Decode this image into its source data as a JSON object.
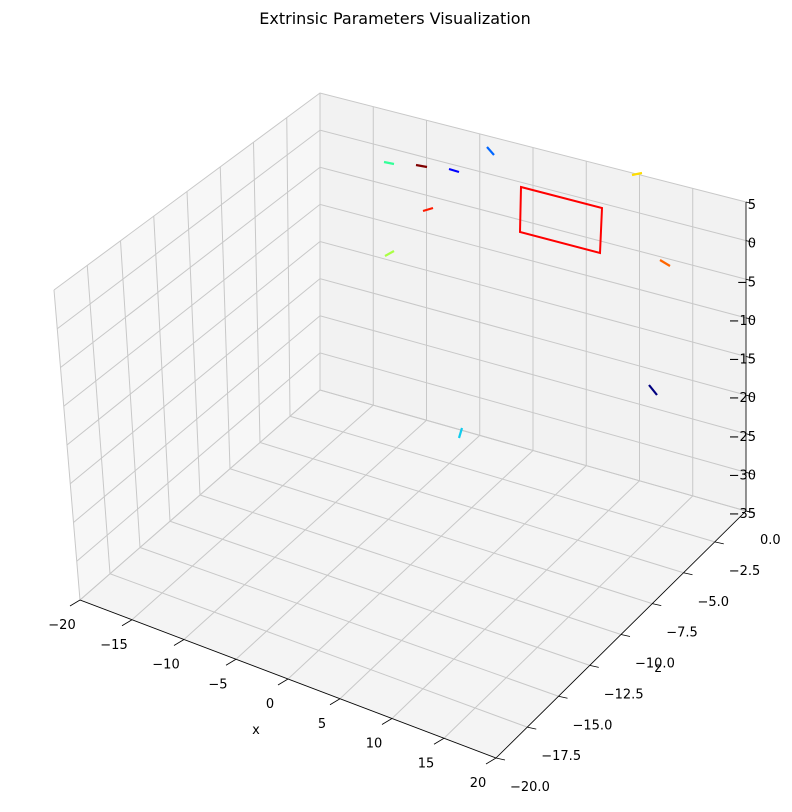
{
  "chart_data": {
    "type": "scatter",
    "title": "Extrinsic Parameters Visualization",
    "xlabel": "x",
    "ylabel": "",
    "zlabel": "z",
    "xlim": [
      -20,
      20
    ],
    "ylim": [
      -35,
      5
    ],
    "zlim": [
      -20,
      0
    ],
    "x_ticks": [
      "−20",
      "−15",
      "−10",
      "−5",
      "0",
      "5",
      "10",
      "15",
      "20"
    ],
    "y_ticks": [
      "5",
      "0",
      "−5",
      "−10",
      "−15",
      "−20",
      "−25",
      "−30",
      "−35"
    ],
    "z_ticks": [
      "0.0",
      "−2.5",
      "−5.0",
      "−7.5",
      "−10.0",
      "−12.5",
      "−15.0",
      "−17.5",
      "−20.0"
    ],
    "grid": true,
    "board": {
      "color": "#ff0000"
    },
    "series": [
      {
        "color": "#33ff99"
      },
      {
        "color": "#800000"
      },
      {
        "color": "#0000ff"
      },
      {
        "color": "#0066ff"
      },
      {
        "color": "#ffdd00"
      },
      {
        "color": "#ff1a00"
      },
      {
        "color": "#aaff44"
      },
      {
        "color": "#ff6600"
      },
      {
        "color": "#000080"
      },
      {
        "color": "#11ccee"
      }
    ]
  }
}
